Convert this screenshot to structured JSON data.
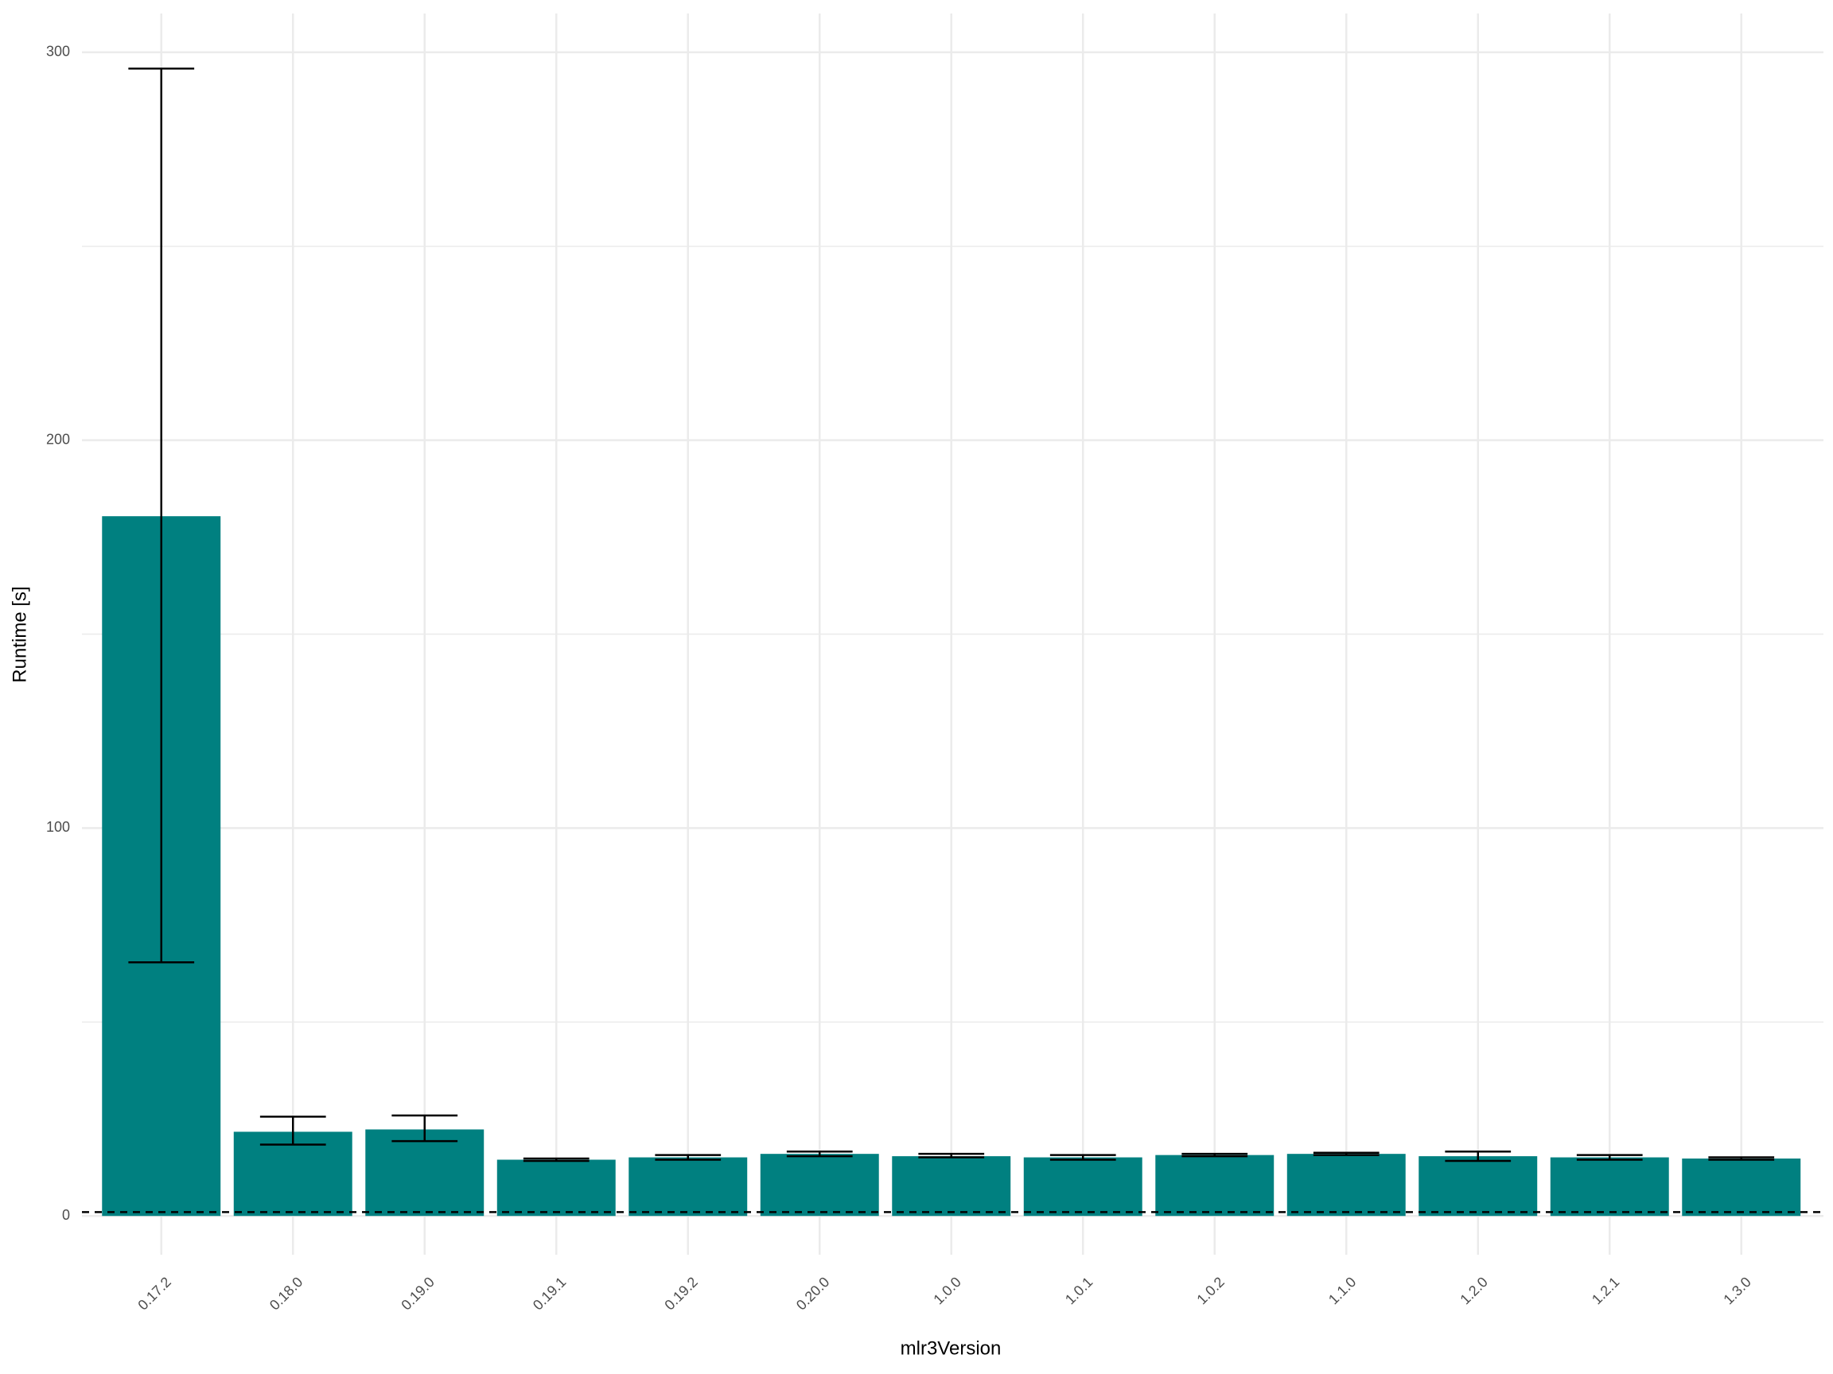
{
  "chart_data": {
    "type": "bar",
    "x_label": "mlr3Version",
    "y_label": "Runtime [s]",
    "categories": [
      "0.17.2",
      "0.18.0",
      "0.19.0",
      "0.19.1",
      "0.19.2",
      "0.20.0",
      "1.0.0",
      "1.0.1",
      "1.0.2",
      "1.1.0",
      "1.2.0",
      "1.2.1",
      "1.3.0"
    ],
    "series": [
      {
        "color": "#008080",
        "values": [
          180.4,
          21.7,
          22.3,
          14.5,
          15.1,
          16.0,
          15.4,
          15.1,
          15.7,
          16.0,
          15.4,
          15.1,
          14.8
        ],
        "lower": [
          65.4,
          18.4,
          19.3,
          14.2,
          14.5,
          15.4,
          15.1,
          14.5,
          15.4,
          15.7,
          14.2,
          14.5,
          14.5
        ],
        "upper": [
          295.8,
          25.6,
          25.9,
          14.8,
          15.7,
          16.6,
          16.0,
          15.7,
          16.0,
          16.3,
          16.6,
          15.7,
          15.1
        ]
      }
    ],
    "reference_line": 1,
    "ylim": [
      -10,
      310
    ],
    "yticks": [
      0,
      100,
      200,
      300
    ],
    "minor_yticks": [
      50,
      150,
      250
    ],
    "grid": true
  }
}
